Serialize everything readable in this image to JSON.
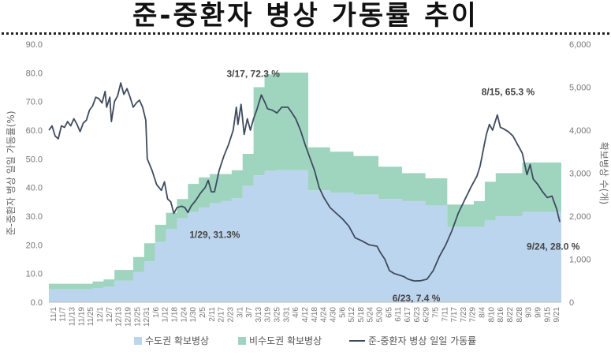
{
  "header": {
    "title": "준-중환자 병상 가동률 추이"
  },
  "chart_data": {
    "type": "area",
    "title": "준-중환자 병상 가동률 추이",
    "ylabel_left": "준-중환자 병상 일일 가동률(%)",
    "ylabel_right": "확보병상 수(개)",
    "y_left_range": [
      0,
      90
    ],
    "y_left_ticks": [
      "0.0",
      "10.0",
      "20.0",
      "30.0",
      "40.0",
      "50.0",
      "60.0",
      "70.0",
      "80.0",
      "90.0"
    ],
    "y_right_range": [
      0,
      6000
    ],
    "y_right_ticks": [
      "0",
      "1,000",
      "2,000",
      "3,000",
      "4,000",
      "5,000",
      "6,000"
    ],
    "x_range": [
      "2021-11-01",
      "2022-09-25"
    ],
    "x_tick_labels": [
      "11/1",
      "11/7",
      "11/13",
      "11/19",
      "11/25",
      "12/1",
      "12/7",
      "12/13",
      "12/19",
      "12/25",
      "12/31",
      "1/6",
      "1/12",
      "1/18",
      "1/24",
      "1/30",
      "2/5",
      "2/11",
      "2/17",
      "2/23",
      "3/1",
      "3/7",
      "3/13",
      "3/19",
      "3/25",
      "3/31",
      "4/6",
      "4/12",
      "4/18",
      "4/24",
      "4/30",
      "5/6",
      "5/12",
      "5/18",
      "5/24",
      "5/30",
      "6/5",
      "6/11",
      "6/17",
      "6/23",
      "6/29",
      "7/5",
      "7/11",
      "7/17",
      "7/23",
      "7/29",
      "8/4",
      "8/10",
      "8/16",
      "8/22",
      "8/28",
      "9/3",
      "9/9",
      "9/15",
      "9/21"
    ],
    "series": [
      {
        "name": "수도권 확보병상",
        "kind": "stacked-area",
        "color": "#bcd5ee",
        "points": [
          [
            "2021-11-01",
            300
          ],
          [
            "2021-11-15",
            300
          ],
          [
            "2021-11-29",
            330
          ],
          [
            "2021-12-06",
            360
          ],
          [
            "2021-12-13",
            500
          ],
          [
            "2021-12-25",
            700
          ],
          [
            "2022-01-01",
            950
          ],
          [
            "2022-01-08",
            1400
          ],
          [
            "2022-01-15",
            1700
          ],
          [
            "2022-01-22",
            1950
          ],
          [
            "2022-01-29",
            2100
          ],
          [
            "2022-02-05",
            2200
          ],
          [
            "2022-02-12",
            2300
          ],
          [
            "2022-02-19",
            2350
          ],
          [
            "2022-02-26",
            2420
          ],
          [
            "2022-03-05",
            2700
          ],
          [
            "2022-03-12",
            2950
          ],
          [
            "2022-03-19",
            3050
          ],
          [
            "2022-03-26",
            3070
          ],
          [
            "2022-04-15",
            3070
          ],
          [
            "2022-04-16",
            2600
          ],
          [
            "2022-04-30",
            2550
          ],
          [
            "2022-05-15",
            2500
          ],
          [
            "2022-05-31",
            2400
          ],
          [
            "2022-06-15",
            2350
          ],
          [
            "2022-06-30",
            2250
          ],
          [
            "2022-07-14",
            1750
          ],
          [
            "2022-07-31",
            1750
          ],
          [
            "2022-08-07",
            1900
          ],
          [
            "2022-08-14",
            2000
          ],
          [
            "2022-08-31",
            2100
          ],
          [
            "2022-09-25",
            2130
          ]
        ]
      },
      {
        "name": "비수도권 확보병상",
        "kind": "stacked-area",
        "color": "#9fd4bf",
        "points": [
          [
            "2021-11-01",
            130
          ],
          [
            "2021-11-15",
            130
          ],
          [
            "2021-11-29",
            150
          ],
          [
            "2021-12-06",
            170
          ],
          [
            "2021-12-13",
            250
          ],
          [
            "2021-12-25",
            350
          ],
          [
            "2022-01-01",
            420
          ],
          [
            "2022-01-08",
            400
          ],
          [
            "2022-01-15",
            380
          ],
          [
            "2022-01-22",
            450
          ],
          [
            "2022-01-29",
            650
          ],
          [
            "2022-02-05",
            700
          ],
          [
            "2022-02-12",
            680
          ],
          [
            "2022-02-19",
            630
          ],
          [
            "2022-02-26",
            650
          ],
          [
            "2022-03-05",
            750
          ],
          [
            "2022-03-12",
            2050
          ],
          [
            "2022-03-19",
            2250
          ],
          [
            "2022-03-26",
            2270
          ],
          [
            "2022-04-15",
            2270
          ],
          [
            "2022-04-16",
            1000
          ],
          [
            "2022-04-30",
            950
          ],
          [
            "2022-05-15",
            900
          ],
          [
            "2022-05-31",
            750
          ],
          [
            "2022-06-15",
            650
          ],
          [
            "2022-06-30",
            630
          ],
          [
            "2022-07-14",
            520
          ],
          [
            "2022-07-31",
            600
          ],
          [
            "2022-08-07",
            900
          ],
          [
            "2022-08-14",
            1000
          ],
          [
            "2022-08-31",
            1150
          ],
          [
            "2022-09-25",
            1080
          ]
        ]
      },
      {
        "name": "준-중환자 병상 일일 가동률",
        "kind": "line",
        "axis": "left",
        "color": "#3e4b5e",
        "points": [
          [
            "2021-11-01",
            60.0
          ],
          [
            "2021-11-03",
            61.5
          ],
          [
            "2021-11-05",
            58.0
          ],
          [
            "2021-11-07",
            57.0
          ],
          [
            "2021-11-09",
            61.5
          ],
          [
            "2021-11-11",
            61.0
          ],
          [
            "2021-11-13",
            63.0
          ],
          [
            "2021-11-15",
            61.5
          ],
          [
            "2021-11-17",
            64.0
          ],
          [
            "2021-11-19",
            62.0
          ],
          [
            "2021-11-21",
            59.5
          ],
          [
            "2021-11-23",
            62.5
          ],
          [
            "2021-11-25",
            63.5
          ],
          [
            "2021-11-27",
            67.0
          ],
          [
            "2021-11-29",
            68.5
          ],
          [
            "2021-12-01",
            71.5
          ],
          [
            "2021-12-03",
            71.0
          ],
          [
            "2021-12-05",
            69.5
          ],
          [
            "2021-12-07",
            73.5
          ],
          [
            "2021-12-08",
            68.0
          ],
          [
            "2021-12-10",
            71.5
          ],
          [
            "2021-12-11",
            63.0
          ],
          [
            "2021-12-13",
            70.0
          ],
          [
            "2021-12-15",
            72.0
          ],
          [
            "2021-12-17",
            76.5
          ],
          [
            "2021-12-19",
            72.5
          ],
          [
            "2021-12-21",
            74.5
          ],
          [
            "2021-12-23",
            71.5
          ],
          [
            "2021-12-25",
            68.0
          ],
          [
            "2021-12-27",
            69.5
          ],
          [
            "2021-12-29",
            70.5
          ],
          [
            "2021-12-31",
            68.0
          ],
          [
            "2022-01-02",
            63.5
          ],
          [
            "2022-01-03",
            50.0
          ],
          [
            "2022-01-06",
            46.0
          ],
          [
            "2022-01-09",
            41.0
          ],
          [
            "2022-01-12",
            39.0
          ],
          [
            "2022-01-14",
            42.0
          ],
          [
            "2022-01-16",
            36.0
          ],
          [
            "2022-01-18",
            35.0
          ],
          [
            "2022-01-20",
            31.0
          ],
          [
            "2022-01-22",
            33.0
          ],
          [
            "2022-01-25",
            33.5
          ],
          [
            "2022-01-27",
            33.0
          ],
          [
            "2022-01-29",
            31.3
          ],
          [
            "2022-01-31",
            33.5
          ],
          [
            "2022-02-03",
            35.5
          ],
          [
            "2022-02-06",
            38.0
          ],
          [
            "2022-02-09",
            40.0
          ],
          [
            "2022-02-11",
            42.5
          ],
          [
            "2022-02-13",
            38.5
          ],
          [
            "2022-02-15",
            38.5
          ],
          [
            "2022-02-18",
            46.0
          ],
          [
            "2022-02-21",
            51.0
          ],
          [
            "2022-02-24",
            55.0
          ],
          [
            "2022-02-27",
            60.0
          ],
          [
            "2022-03-01",
            68.0
          ],
          [
            "2022-03-02",
            62.0
          ],
          [
            "2022-03-04",
            69.0
          ],
          [
            "2022-03-06",
            58.5
          ],
          [
            "2022-03-08",
            64.0
          ],
          [
            "2022-03-10",
            60.0
          ],
          [
            "2022-03-12",
            64.0
          ],
          [
            "2022-03-14",
            67.0
          ],
          [
            "2022-03-17",
            72.3
          ],
          [
            "2022-03-19",
            70.0
          ],
          [
            "2022-03-21",
            67.5
          ],
          [
            "2022-03-24",
            67.0
          ],
          [
            "2022-03-27",
            66.0
          ],
          [
            "2022-03-30",
            68.0
          ],
          [
            "2022-04-03",
            68.0
          ],
          [
            "2022-04-05",
            66.5
          ],
          [
            "2022-04-08",
            64.0
          ],
          [
            "2022-04-11",
            60.0
          ],
          [
            "2022-04-14",
            55.0
          ],
          [
            "2022-04-17",
            50.5
          ],
          [
            "2022-04-20",
            46.0
          ],
          [
            "2022-04-23",
            40.0
          ],
          [
            "2022-04-26",
            36.5
          ],
          [
            "2022-04-30",
            33.0
          ],
          [
            "2022-05-04",
            31.0
          ],
          [
            "2022-05-08",
            29.0
          ],
          [
            "2022-05-12",
            26.5
          ],
          [
            "2022-05-16",
            22.5
          ],
          [
            "2022-05-20",
            21.5
          ],
          [
            "2022-05-25",
            20.0
          ],
          [
            "2022-05-30",
            19.5
          ],
          [
            "2022-06-01",
            17.5
          ],
          [
            "2022-06-04",
            15.0
          ],
          [
            "2022-06-07",
            11.0
          ],
          [
            "2022-06-10",
            10.0
          ],
          [
            "2022-06-13",
            9.5
          ],
          [
            "2022-06-16",
            9.0
          ],
          [
            "2022-06-19",
            8.0
          ],
          [
            "2022-06-23",
            7.4
          ],
          [
            "2022-06-27",
            7.5
          ],
          [
            "2022-07-01",
            8.0
          ],
          [
            "2022-07-05",
            11.0
          ],
          [
            "2022-07-09",
            16.0
          ],
          [
            "2022-07-13",
            20.0
          ],
          [
            "2022-07-17",
            25.0
          ],
          [
            "2022-07-21",
            31.0
          ],
          [
            "2022-07-25",
            35.5
          ],
          [
            "2022-07-29",
            40.0
          ],
          [
            "2022-08-02",
            44.0
          ],
          [
            "2022-08-04",
            47.5
          ],
          [
            "2022-08-06",
            53.0
          ],
          [
            "2022-08-08",
            58.5
          ],
          [
            "2022-08-10",
            62.0
          ],
          [
            "2022-08-12",
            60.0
          ],
          [
            "2022-08-15",
            65.3
          ],
          [
            "2022-08-17",
            61.0
          ],
          [
            "2022-08-19",
            60.5
          ],
          [
            "2022-08-22",
            59.5
          ],
          [
            "2022-08-25",
            58.0
          ],
          [
            "2022-08-28",
            55.0
          ],
          [
            "2022-08-31",
            52.0
          ],
          [
            "2022-09-03",
            44.5
          ],
          [
            "2022-09-05",
            48.0
          ],
          [
            "2022-09-07",
            43.0
          ],
          [
            "2022-09-10",
            41.0
          ],
          [
            "2022-09-13",
            38.5
          ],
          [
            "2022-09-16",
            36.5
          ],
          [
            "2022-09-19",
            37.0
          ],
          [
            "2022-09-22",
            32.5
          ],
          [
            "2022-09-24",
            28.0
          ]
        ]
      }
    ],
    "annotations": [
      {
        "text": "1/29, 31.3%",
        "date": "2022-01-29",
        "value": 31.3
      },
      {
        "text": "3/17, 72.3 %",
        "date": "2022-03-17",
        "value": 72.3
      },
      {
        "text": "6/23, 7.4 %",
        "date": "2022-06-23",
        "value": 7.4
      },
      {
        "text": "8/15, 65.3 %",
        "date": "2022-08-15",
        "value": 65.3
      },
      {
        "text": "9/24, 28.0 %",
        "date": "2022-09-24",
        "value": 28.0
      }
    ],
    "legend": {
      "position": "bottom",
      "items": [
        {
          "label": "수도권 확보병상",
          "color": "#bcd5ee",
          "kind": "area"
        },
        {
          "label": "비수도권 확보병상",
          "color": "#9fd4bf",
          "kind": "area"
        },
        {
          "label": "준-중환자 병상 일일 가동률",
          "color": "#3e4b5e",
          "kind": "line"
        }
      ]
    },
    "grid": false
  }
}
